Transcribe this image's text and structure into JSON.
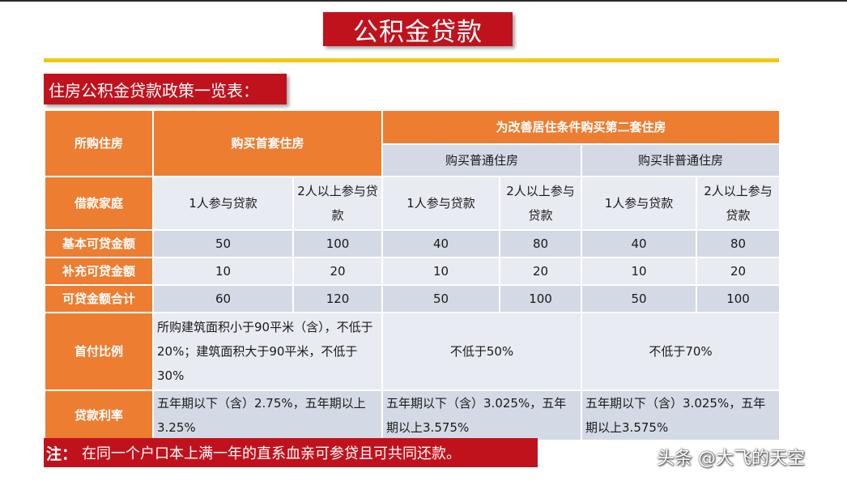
{
  "title": "公积金贷款",
  "subtitle": "住房公积金贷款政策一览表：",
  "table": {
    "col_house": "所购住房",
    "first_home": "购买首套住房",
    "second_home": "为改善居住条件购买第二套住房",
    "second_normal": "购买普通住房",
    "second_non_normal": "购买非普通住房",
    "row_family": "借款家庭",
    "one_person": "1人参与贷款",
    "two_persons": "2人以上参与贷款",
    "rows": [
      {
        "label": "基本可贷金额",
        "values": [
          "50",
          "100",
          "40",
          "80",
          "40",
          "80"
        ]
      },
      {
        "label": "补充可贷金额",
        "values": [
          "10",
          "20",
          "10",
          "20",
          "10",
          "20"
        ]
      },
      {
        "label": "可贷金额合计",
        "values": [
          "60",
          "120",
          "50",
          "100",
          "50",
          "100"
        ]
      }
    ],
    "down_payment": {
      "label": "首付比例",
      "first": "所购建筑面积小于90平米（含），不低于20%；建筑面积大于90平米，不低于30%",
      "second_normal": "不低于50%",
      "second_non_normal": "不低于70%"
    },
    "rate": {
      "label": "贷款利率",
      "first": "五年期以下（含）2.75%，五年期以上3.25%",
      "second_normal": "五年期以下（含）3.025%，五年期以上3.575%",
      "second_non_normal": "五年期以下（含）3.025%，五年期以上3.575%"
    }
  },
  "note": {
    "label": "注：",
    "text": "在同一个户口本上满一年的直系血亲可参贷且可共同还款。"
  },
  "watermark": "头条 @大飞的天空"
}
